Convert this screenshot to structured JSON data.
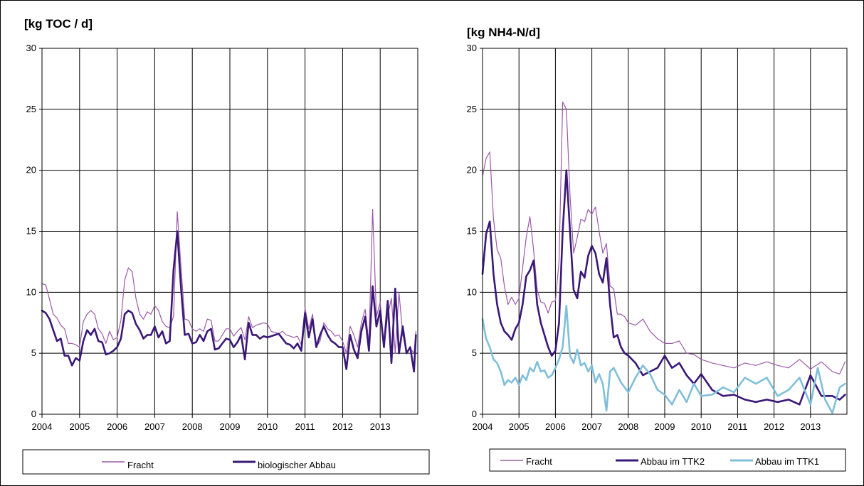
{
  "chart_data": [
    {
      "type": "line",
      "title": "",
      "ylabel": "[kg TOC / d]",
      "xlabel": "",
      "ylim": [
        0,
        30
      ],
      "yticks": [
        0,
        5,
        10,
        15,
        20,
        25,
        30
      ],
      "xlim": [
        2004,
        2014
      ],
      "xticks": [
        "2004",
        "2005",
        "2006",
        "2007",
        "2008",
        "2009",
        "2010",
        "2011",
        "2012",
        "2013"
      ],
      "grid": true,
      "legend_position": "bottom",
      "series": [
        {
          "name": "Fracht",
          "color": "#9b59a6",
          "x": [
            2004.0,
            2004.1,
            2004.2,
            2004.3,
            2004.4,
            2004.5,
            2004.6,
            2004.7,
            2004.8,
            2004.9,
            2005.0,
            2005.1,
            2005.2,
            2005.3,
            2005.4,
            2005.5,
            2005.6,
            2005.7,
            2005.8,
            2005.9,
            2006.0,
            2006.1,
            2006.2,
            2006.3,
            2006.4,
            2006.5,
            2006.6,
            2006.7,
            2006.8,
            2006.9,
            2007.0,
            2007.1,
            2007.2,
            2007.3,
            2007.4,
            2007.5,
            2007.6,
            2007.7,
            2007.8,
            2007.9,
            2008.0,
            2008.1,
            2008.2,
            2008.3,
            2008.4,
            2008.5,
            2008.6,
            2008.7,
            2008.8,
            2008.9,
            2009.0,
            2009.1,
            2009.2,
            2009.3,
            2009.4,
            2009.5,
            2009.6,
            2009.7,
            2009.8,
            2009.9,
            2010.0,
            2010.1,
            2010.2,
            2010.3,
            2010.4,
            2010.5,
            2010.6,
            2010.7,
            2010.8,
            2010.9,
            2011.0,
            2011.1,
            2011.2,
            2011.3,
            2011.4,
            2011.5,
            2011.6,
            2011.7,
            2011.8,
            2011.9,
            2012.0,
            2012.1,
            2012.2,
            2012.3,
            2012.4,
            2012.5,
            2012.6,
            2012.7,
            2012.8,
            2012.9,
            2013.0,
            2013.1,
            2013.2,
            2013.3,
            2013.4,
            2013.5,
            2013.6,
            2013.7,
            2013.8,
            2013.9,
            2013.95
          ],
          "values": [
            10.7,
            10.6,
            9.4,
            8.2,
            7.9,
            7.3,
            7.0,
            5.8,
            5.8,
            5.7,
            5.5,
            7.6,
            8.2,
            8.5,
            8.2,
            7.0,
            6.6,
            5.8,
            6.8,
            6.1,
            6.3,
            7.7,
            11.0,
            12.0,
            11.7,
            9.5,
            8.2,
            7.8,
            8.4,
            8.2,
            8.9,
            8.5,
            7.6,
            7.2,
            7.1,
            8.0,
            16.6,
            12.0,
            7.8,
            7.7,
            7.0,
            6.8,
            7.0,
            6.8,
            7.8,
            7.7,
            6.0,
            6.0,
            6.5,
            7.0,
            7.0,
            6.4,
            6.8,
            7.1,
            6.1,
            8.0,
            7.1,
            7.3,
            7.4,
            7.5,
            7.4,
            6.8,
            6.7,
            6.6,
            6.8,
            6.5,
            6.4,
            6.3,
            6.4,
            5.7,
            8.7,
            7.0,
            8.2,
            5.5,
            6.0,
            7.5,
            7.0,
            6.8,
            6.4,
            6.5,
            6.0,
            5.0,
            7.2,
            6.5,
            5.5,
            7.5,
            8.6,
            5.8,
            16.8,
            8.0,
            9.2,
            5.5,
            8.1,
            9.5,
            5.0,
            10.0,
            6.5,
            5.1,
            5.4,
            5.0,
            6.8
          ]
        },
        {
          "name": "biologischer Abbau",
          "color": "#3a1878",
          "x": [
            2004.0,
            2004.1,
            2004.2,
            2004.3,
            2004.4,
            2004.5,
            2004.6,
            2004.7,
            2004.8,
            2004.9,
            2005.0,
            2005.1,
            2005.2,
            2005.3,
            2005.4,
            2005.5,
            2005.6,
            2005.7,
            2005.8,
            2005.9,
            2006.0,
            2006.1,
            2006.2,
            2006.3,
            2006.4,
            2006.5,
            2006.6,
            2006.7,
            2006.8,
            2006.9,
            2007.0,
            2007.1,
            2007.2,
            2007.3,
            2007.4,
            2007.5,
            2007.6,
            2007.7,
            2007.8,
            2007.9,
            2008.0,
            2008.1,
            2008.2,
            2008.3,
            2008.4,
            2008.5,
            2008.6,
            2008.7,
            2008.8,
            2008.9,
            2009.0,
            2009.1,
            2009.2,
            2009.3,
            2009.4,
            2009.5,
            2009.6,
            2009.7,
            2009.8,
            2009.9,
            2010.0,
            2010.1,
            2010.2,
            2010.3,
            2010.4,
            2010.5,
            2010.6,
            2010.7,
            2010.8,
            2010.9,
            2011.0,
            2011.1,
            2011.2,
            2011.3,
            2011.4,
            2011.5,
            2011.6,
            2011.7,
            2011.8,
            2011.9,
            2012.0,
            2012.1,
            2012.2,
            2012.3,
            2012.4,
            2012.5,
            2012.6,
            2012.7,
            2012.8,
            2012.9,
            2013.0,
            2013.1,
            2013.2,
            2013.3,
            2013.4,
            2013.5,
            2013.6,
            2013.7,
            2013.8,
            2013.9,
            2013.95
          ],
          "values": [
            8.5,
            8.3,
            7.8,
            6.9,
            6.0,
            6.2,
            4.8,
            4.8,
            4.0,
            4.6,
            4.4,
            6.0,
            6.9,
            6.5,
            7.0,
            6.0,
            5.9,
            4.9,
            5.0,
            5.2,
            5.5,
            6.2,
            8.2,
            8.5,
            8.3,
            7.4,
            6.9,
            6.2,
            6.5,
            6.5,
            7.2,
            6.3,
            6.8,
            5.8,
            6.0,
            11.8,
            15.0,
            10.3,
            6.5,
            6.6,
            5.8,
            5.9,
            6.5,
            6.0,
            6.8,
            7.0,
            5.3,
            5.4,
            5.8,
            6.2,
            6.1,
            5.5,
            5.9,
            6.5,
            4.5,
            7.5,
            6.5,
            6.5,
            6.2,
            6.4,
            6.3,
            6.4,
            6.5,
            6.6,
            6.2,
            5.8,
            5.7,
            5.4,
            5.8,
            5.2,
            8.3,
            6.3,
            7.8,
            5.5,
            6.5,
            7.2,
            6.5,
            6.0,
            5.8,
            5.5,
            5.5,
            3.7,
            6.5,
            5.3,
            4.6,
            6.8,
            8.0,
            5.2,
            10.5,
            7.2,
            8.5,
            5.5,
            9.3,
            4.2,
            10.3,
            5.0,
            7.2,
            5.0,
            5.5,
            3.5,
            6.5
          ]
        }
      ]
    },
    {
      "type": "line",
      "title": "",
      "ylabel": "[kg NH4-N/d]",
      "xlabel": "",
      "ylim": [
        0,
        30
      ],
      "yticks": [
        0,
        5,
        10,
        15,
        20,
        25,
        30
      ],
      "xlim": [
        2004,
        2014
      ],
      "xticks": [
        "2004",
        "2005",
        "2006",
        "2007",
        "2008",
        "2009",
        "2010",
        "2011",
        "2012",
        "2013"
      ],
      "grid": true,
      "legend_position": "bottom",
      "series": [
        {
          "name": "Fracht",
          "color": "#9b59a6",
          "x": [
            2004.0,
            2004.1,
            2004.2,
            2004.3,
            2004.4,
            2004.5,
            2004.6,
            2004.7,
            2004.8,
            2004.9,
            2005.0,
            2005.1,
            2005.2,
            2005.3,
            2005.4,
            2005.5,
            2005.6,
            2005.7,
            2005.8,
            2005.9,
            2006.0,
            2006.1,
            2006.2,
            2006.3,
            2006.4,
            2006.5,
            2006.6,
            2006.7,
            2006.8,
            2006.9,
            2007.0,
            2007.1,
            2007.2,
            2007.3,
            2007.4,
            2007.5,
            2007.6,
            2007.7,
            2007.8,
            2007.9,
            2008.0,
            2008.2,
            2008.4,
            2008.6,
            2008.8,
            2009.0,
            2009.2,
            2009.4,
            2009.6,
            2009.8,
            2010.0,
            2010.3,
            2010.6,
            2010.9,
            2011.2,
            2011.5,
            2011.8,
            2012.1,
            2012.4,
            2012.7,
            2013.0,
            2013.3,
            2013.6,
            2013.8,
            2013.95
          ],
          "values": [
            19.5,
            21.0,
            21.5,
            16.0,
            13.5,
            12.8,
            10.5,
            9.0,
            9.6,
            9.0,
            9.5,
            12.0,
            14.5,
            16.2,
            13.5,
            10.2,
            9.2,
            9.1,
            8.3,
            9.2,
            9.3,
            12.5,
            25.6,
            25.0,
            18.0,
            13.2,
            14.5,
            16.0,
            15.8,
            16.8,
            16.4,
            17.0,
            15.0,
            13.2,
            14.0,
            10.5,
            10.3,
            8.2,
            8.2,
            8.0,
            7.5,
            7.3,
            7.8,
            6.8,
            6.2,
            5.8,
            5.8,
            6.0,
            5.0,
            4.9,
            4.5,
            4.2,
            4.0,
            3.8,
            4.2,
            4.0,
            4.3,
            4.0,
            3.8,
            4.5,
            3.7,
            4.3,
            3.5,
            3.3,
            4.3
          ]
        },
        {
          "name": "Abbau im TTK2",
          "color": "#3a1878",
          "x": [
            2004.0,
            2004.1,
            2004.2,
            2004.3,
            2004.4,
            2004.5,
            2004.6,
            2004.7,
            2004.8,
            2004.9,
            2005.0,
            2005.1,
            2005.2,
            2005.3,
            2005.4,
            2005.5,
            2005.6,
            2005.7,
            2005.8,
            2005.9,
            2006.0,
            2006.1,
            2006.2,
            2006.3,
            2006.4,
            2006.5,
            2006.6,
            2006.7,
            2006.8,
            2006.9,
            2007.0,
            2007.1,
            2007.2,
            2007.3,
            2007.4,
            2007.5,
            2007.6,
            2007.7,
            2007.8,
            2007.9,
            2008.0,
            2008.2,
            2008.4,
            2008.6,
            2008.8,
            2009.0,
            2009.2,
            2009.4,
            2009.6,
            2009.8,
            2010.0,
            2010.3,
            2010.6,
            2010.9,
            2011.2,
            2011.5,
            2011.8,
            2012.1,
            2012.4,
            2012.7,
            2013.0,
            2013.3,
            2013.6,
            2013.8,
            2013.95
          ],
          "values": [
            11.5,
            14.8,
            15.8,
            11.5,
            9.0,
            7.5,
            6.8,
            6.5,
            6.1,
            7.0,
            7.5,
            9.0,
            11.3,
            11.8,
            12.6,
            9.0,
            7.5,
            6.5,
            5.5,
            4.8,
            5.2,
            7.5,
            15.0,
            20.0,
            15.0,
            10.2,
            9.5,
            11.7,
            11.2,
            13.0,
            13.8,
            13.2,
            11.5,
            10.8,
            12.8,
            9.0,
            6.3,
            6.5,
            5.5,
            5.0,
            4.8,
            4.2,
            3.2,
            3.5,
            3.8,
            4.8,
            3.8,
            4.2,
            3.2,
            2.5,
            3.3,
            2.0,
            1.5,
            1.6,
            1.2,
            1.0,
            1.2,
            1.0,
            1.2,
            0.8,
            3.2,
            1.5,
            1.5,
            1.2,
            1.6
          ]
        },
        {
          "name": "Abbau im TTK1",
          "color": "#7fbfd9",
          "x": [
            2004.0,
            2004.1,
            2004.2,
            2004.3,
            2004.4,
            2004.5,
            2004.6,
            2004.7,
            2004.8,
            2004.9,
            2005.0,
            2005.1,
            2005.2,
            2005.3,
            2005.4,
            2005.5,
            2005.6,
            2005.7,
            2005.8,
            2005.9,
            2006.0,
            2006.1,
            2006.2,
            2006.3,
            2006.4,
            2006.5,
            2006.6,
            2006.7,
            2006.8,
            2006.9,
            2007.0,
            2007.1,
            2007.2,
            2007.3,
            2007.4,
            2007.5,
            2007.6,
            2007.7,
            2007.8,
            2007.9,
            2008.0,
            2008.2,
            2008.4,
            2008.6,
            2008.8,
            2009.0,
            2009.2,
            2009.4,
            2009.6,
            2009.8,
            2010.0,
            2010.3,
            2010.6,
            2010.9,
            2011.2,
            2011.5,
            2011.8,
            2012.1,
            2012.4,
            2012.7,
            2013.0,
            2013.2,
            2013.4,
            2013.6,
            2013.8,
            2013.95
          ],
          "values": [
            7.8,
            6.2,
            5.5,
            4.5,
            4.2,
            3.5,
            2.4,
            2.8,
            2.6,
            3.0,
            2.4,
            3.2,
            2.8,
            3.8,
            3.5,
            4.3,
            3.5,
            3.6,
            3.0,
            3.2,
            3.8,
            4.5,
            5.5,
            8.9,
            4.8,
            4.2,
            5.3,
            4.0,
            4.2,
            3.5,
            4.0,
            2.6,
            3.3,
            2.5,
            0.3,
            3.5,
            3.8,
            3.2,
            2.6,
            2.2,
            1.8,
            3.0,
            4.0,
            3.3,
            2.0,
            1.6,
            0.8,
            2.0,
            1.0,
            2.5,
            1.5,
            1.6,
            2.2,
            1.8,
            3.0,
            2.5,
            3.0,
            1.5,
            2.0,
            3.0,
            0.8,
            3.8,
            1.2,
            0.1,
            2.2,
            2.5
          ]
        }
      ]
    }
  ]
}
